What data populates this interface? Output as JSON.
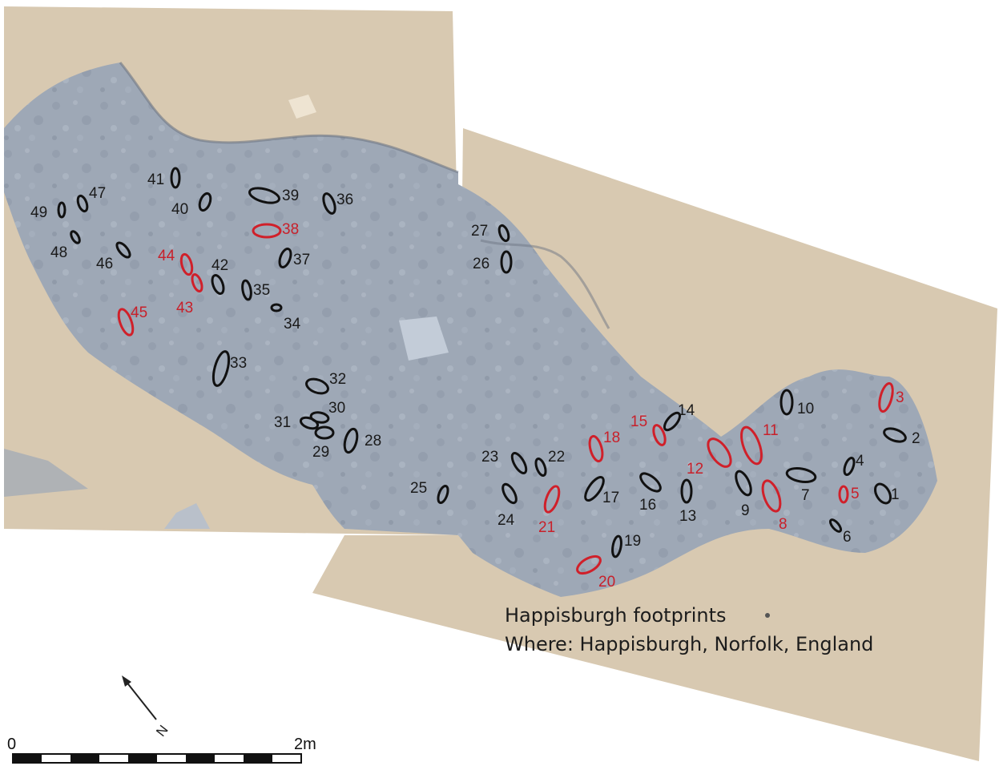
{
  "caption": {
    "title": "Happisburgh footprints",
    "location": "Where: Happisburgh, Norfolk, England"
  },
  "north_arrow": {
    "label": "N"
  },
  "scale_bar": {
    "start_label": "0",
    "end_label": "2m"
  },
  "colors": {
    "sand": "#d8c9b1",
    "sediment": "#9ea8b6",
    "outline_black": "#111111",
    "outline_red": "#d0202a"
  },
  "footprints": [
    {
      "id": "1",
      "color": "black"
    },
    {
      "id": "2",
      "color": "black"
    },
    {
      "id": "3",
      "color": "red"
    },
    {
      "id": "4",
      "color": "black"
    },
    {
      "id": "5",
      "color": "red"
    },
    {
      "id": "6",
      "color": "black"
    },
    {
      "id": "7",
      "color": "black"
    },
    {
      "id": "8",
      "color": "red"
    },
    {
      "id": "9",
      "color": "black"
    },
    {
      "id": "10",
      "color": "black"
    },
    {
      "id": "11",
      "color": "red"
    },
    {
      "id": "12",
      "color": "red"
    },
    {
      "id": "13",
      "color": "black"
    },
    {
      "id": "14",
      "color": "black"
    },
    {
      "id": "15",
      "color": "red"
    },
    {
      "id": "16",
      "color": "black"
    },
    {
      "id": "17",
      "color": "black"
    },
    {
      "id": "18",
      "color": "red"
    },
    {
      "id": "19",
      "color": "black"
    },
    {
      "id": "20",
      "color": "red"
    },
    {
      "id": "21",
      "color": "red"
    },
    {
      "id": "22",
      "color": "black"
    },
    {
      "id": "23",
      "color": "black"
    },
    {
      "id": "24",
      "color": "black"
    },
    {
      "id": "25",
      "color": "black"
    },
    {
      "id": "26",
      "color": "black"
    },
    {
      "id": "27",
      "color": "black"
    },
    {
      "id": "28",
      "color": "black"
    },
    {
      "id": "29",
      "color": "black"
    },
    {
      "id": "30",
      "color": "black"
    },
    {
      "id": "31",
      "color": "black"
    },
    {
      "id": "32",
      "color": "black"
    },
    {
      "id": "33",
      "color": "black"
    },
    {
      "id": "34",
      "color": "black"
    },
    {
      "id": "35",
      "color": "black"
    },
    {
      "id": "36",
      "color": "black"
    },
    {
      "id": "37",
      "color": "black"
    },
    {
      "id": "38",
      "color": "red"
    },
    {
      "id": "39",
      "color": "black"
    },
    {
      "id": "40",
      "color": "black"
    },
    {
      "id": "41",
      "color": "black"
    },
    {
      "id": "42",
      "color": "black"
    },
    {
      "id": "43",
      "color": "red"
    },
    {
      "id": "44",
      "color": "red"
    },
    {
      "id": "45",
      "color": "red"
    },
    {
      "id": "46",
      "color": "black"
    },
    {
      "id": "47",
      "color": "black"
    },
    {
      "id": "48",
      "color": "black"
    },
    {
      "id": "49",
      "color": "black"
    }
  ]
}
